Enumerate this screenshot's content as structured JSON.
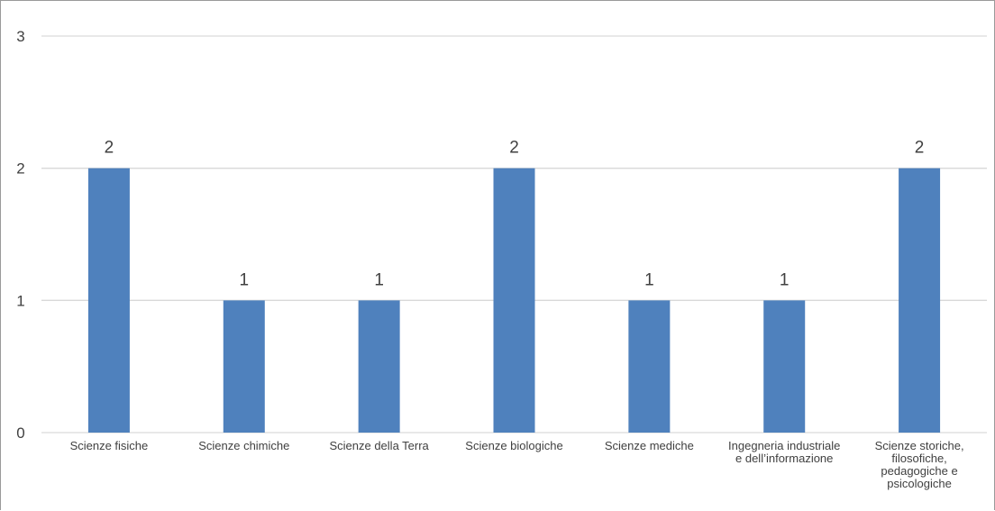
{
  "chart_data": {
    "type": "bar",
    "title": "",
    "xlabel": "",
    "ylabel": "",
    "categories": [
      [
        "Scienze fisiche"
      ],
      [
        "Scienze chimiche"
      ],
      [
        "Scienze della Terra"
      ],
      [
        "Scienze biologiche"
      ],
      [
        "Scienze mediche"
      ],
      [
        "Ingegneria industriale",
        "e dell’informazione"
      ],
      [
        "Scienze storiche,",
        "filosofiche,",
        "pedagogiche e",
        "psicologiche"
      ]
    ],
    "values": [
      2,
      1,
      1,
      2,
      1,
      1,
      2
    ],
    "data_labels": [
      "2",
      "1",
      "1",
      "2",
      "1",
      "1",
      "2"
    ],
    "yticks": [
      0,
      1,
      2,
      3
    ],
    "ylim": [
      0,
      3
    ],
    "grid": true,
    "legend": "none",
    "colors": {
      "bar": "#4f81bd",
      "grid": "#d9d9d9",
      "text": "#404040"
    }
  }
}
